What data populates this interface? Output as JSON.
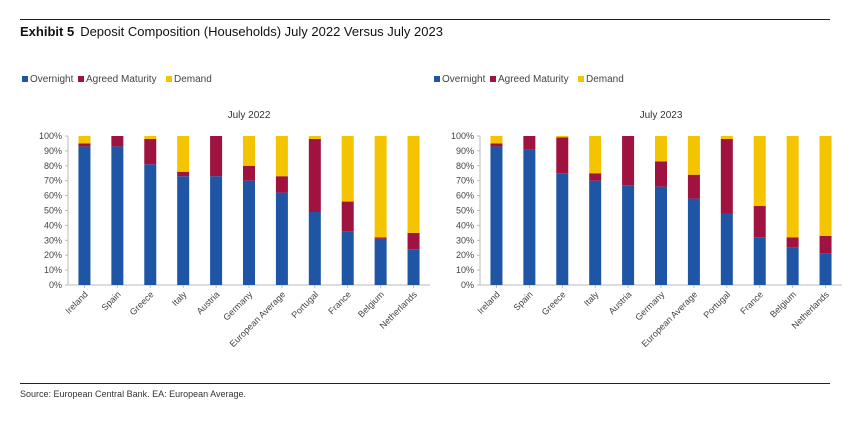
{
  "title": {
    "exhibit": "Exhibit 5",
    "text": "Deposit Composition (Households) July 2022 Versus July 2023"
  },
  "source": "Source: European Central Bank. EA: European Average.",
  "colors": {
    "overnight": "#1f55a5",
    "agreed": "#a0123f",
    "demand": "#f5c400",
    "axis": "#bbbbbb",
    "text": "#444444"
  },
  "chart_data": [
    {
      "type": "bar",
      "stacked": true,
      "title": "July 2022",
      "legend": "top-left",
      "ylim": [
        0,
        100
      ],
      "yticks": [
        "0%",
        "10%",
        "20%",
        "30%",
        "40%",
        "50%",
        "60%",
        "70%",
        "80%",
        "90%",
        "100%"
      ],
      "categories": [
        "Ireland",
        "Spain",
        "Greece",
        "Italy",
        "Austria",
        "Germany",
        "European Average",
        "Portugal",
        "France",
        "Belgium",
        "Netherlands"
      ],
      "series": [
        {
          "name": "Overnight",
          "color": "#1f55a5",
          "values": [
            93,
            93,
            81,
            73,
            73,
            70,
            62,
            49,
            36,
            31,
            24
          ]
        },
        {
          "name": "Agreed Maturity",
          "color": "#a0123f",
          "values": [
            2,
            7,
            17,
            3,
            27,
            10,
            11,
            49,
            20,
            1,
            11
          ]
        },
        {
          "name": "Demand",
          "color": "#f5c400",
          "values": [
            5,
            0,
            2,
            24,
            0,
            20,
            27,
            2,
            44,
            68,
            65
          ]
        }
      ]
    },
    {
      "type": "bar",
      "stacked": true,
      "title": "July 2023",
      "legend": "top-left",
      "ylim": [
        0,
        100
      ],
      "yticks": [
        "0%",
        "10%",
        "20%",
        "30%",
        "40%",
        "50%",
        "60%",
        "70%",
        "80%",
        "90%",
        "100%"
      ],
      "categories": [
        "Ireland",
        "Spain",
        "Greece",
        "Italy",
        "Austria",
        "Germany",
        "European Average",
        "Portugal",
        "France",
        "Belgium",
        "Netherlands"
      ],
      "series": [
        {
          "name": "Overnight",
          "color": "#1f55a5",
          "values": [
            93,
            91,
            75,
            70,
            67,
            66,
            58,
            48,
            32,
            25,
            21
          ]
        },
        {
          "name": "Agreed Maturity",
          "color": "#a0123f",
          "values": [
            2,
            9,
            24,
            5,
            33,
            17,
            16,
            50,
            21,
            7,
            12
          ]
        },
        {
          "name": "Demand",
          "color": "#f5c400",
          "values": [
            5,
            0,
            1,
            25,
            0,
            17,
            26,
            2,
            47,
            68,
            67
          ]
        }
      ]
    }
  ]
}
